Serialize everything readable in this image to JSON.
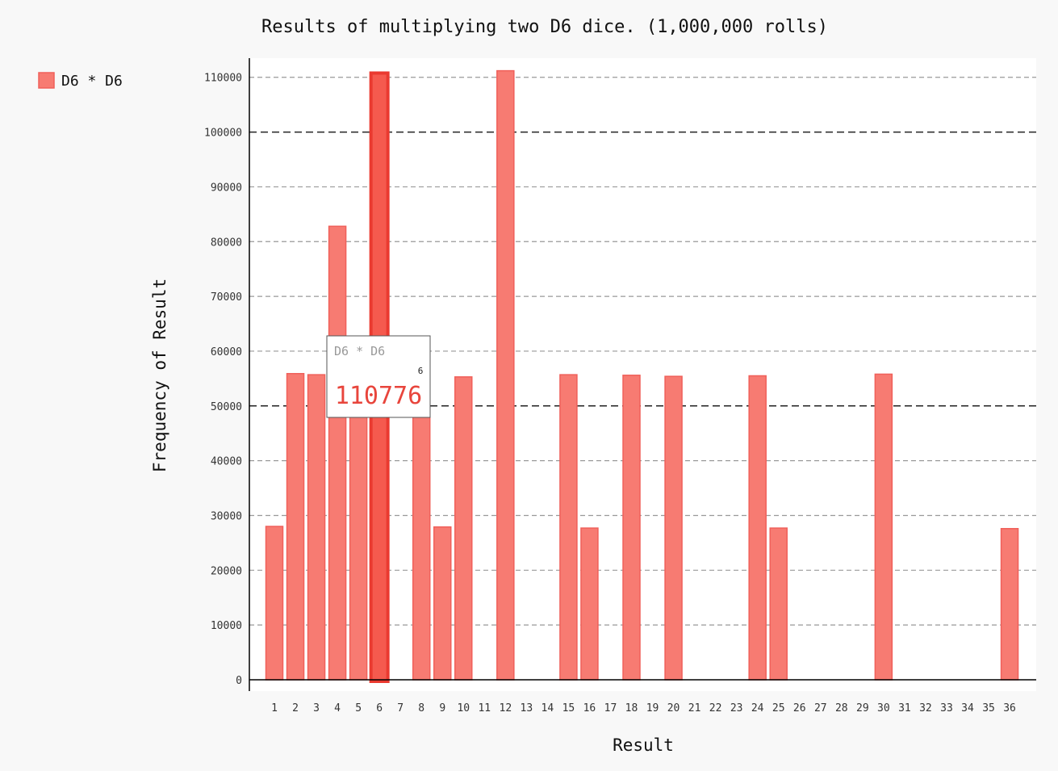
{
  "chart_data": {
    "type": "bar",
    "title": "Results of multiplying two D6 dice. (1,000,000 rolls)",
    "xlabel": "Result",
    "ylabel": "Frequency of Result",
    "categories": [
      "1",
      "2",
      "3",
      "4",
      "5",
      "6",
      "7",
      "8",
      "9",
      "10",
      "11",
      "12",
      "13",
      "14",
      "15",
      "16",
      "17",
      "18",
      "19",
      "20",
      "21",
      "22",
      "23",
      "24",
      "25",
      "26",
      "27",
      "28",
      "29",
      "30",
      "31",
      "32",
      "33",
      "34",
      "35",
      "36"
    ],
    "series": [
      {
        "name": "D6 * D6",
        "values": [
          28000,
          55900,
          55700,
          82800,
          55600,
          110776,
          0,
          55500,
          27900,
          55300,
          0,
          111200,
          0,
          0,
          55700,
          27700,
          0,
          55600,
          0,
          55400,
          0,
          0,
          0,
          55500,
          27700,
          0,
          0,
          0,
          0,
          55800,
          0,
          0,
          0,
          0,
          0,
          27600
        ]
      }
    ],
    "ylim": [
      0,
      113500
    ],
    "yticks": [
      "0",
      "10000",
      "20000",
      "30000",
      "40000",
      "50000",
      "60000",
      "70000",
      "80000",
      "90000",
      "100000",
      "110000"
    ],
    "major_gridlines": [
      50000,
      100000
    ],
    "grid": true,
    "legend": "top-left",
    "colors": {
      "bar": "#f77b72",
      "bar_stroke": "#f0605a",
      "highlight": "#f55a4e"
    },
    "tooltip": {
      "series": "D6 * D6",
      "x": "6",
      "value": "110776"
    }
  }
}
